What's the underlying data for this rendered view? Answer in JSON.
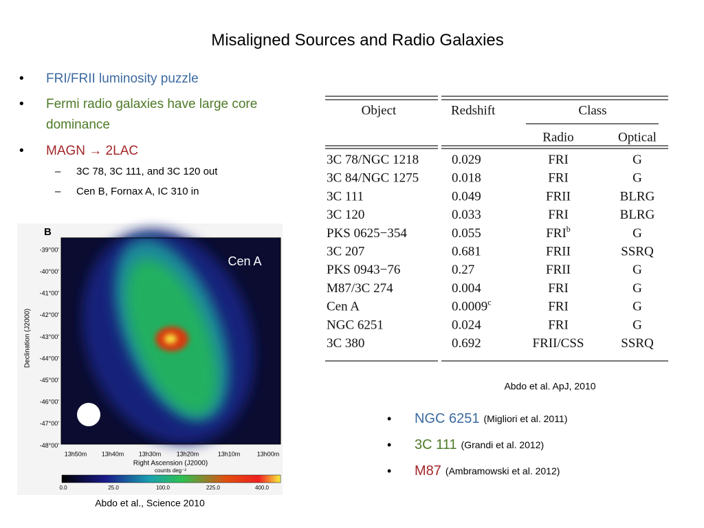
{
  "title": "Misaligned Sources and Radio Galaxies",
  "bullets": [
    {
      "text": "FRI/FRII luminosity puzzle",
      "color": "#3b6aa0"
    },
    {
      "text": "Fermi radio galaxies have large core dominance",
      "color": "#4e7a27"
    },
    {
      "text": "MAGN → 2LAC",
      "color": "#a2262a",
      "sub": [
        "3C 78, 3C 111, and 3C 120 out",
        "Cen B, Fornax A, IC 310 in"
      ]
    }
  ],
  "table": {
    "headers": {
      "object": "Object",
      "redshift": "Redshift",
      "class": "Class",
      "radio": "Radio",
      "optical": "Optical"
    },
    "rows": [
      [
        {
          "text": "3C 78/NGC 1218"
        },
        {
          "text": "0.029"
        },
        {
          "text": "FRI"
        },
        {
          "text": "G"
        }
      ],
      [
        {
          "text": "3C 84/NGC 1275"
        },
        {
          "text": "0.018"
        },
        {
          "text": "FRI"
        },
        {
          "text": "G"
        }
      ],
      [
        {
          "text": "3C 111"
        },
        {
          "text": "0.049"
        },
        {
          "text": "FRII"
        },
        {
          "text": "BLRG"
        }
      ],
      [
        {
          "text": "3C 120"
        },
        {
          "text": "0.033"
        },
        {
          "text": "FRI"
        },
        {
          "text": "BLRG"
        }
      ],
      [
        {
          "text": "PKS 0625−354"
        },
        {
          "text": "0.055"
        },
        {
          "text": "FRI",
          "sup": "b"
        },
        {
          "text": "G"
        }
      ],
      [
        {
          "text": "3C 207"
        },
        {
          "text": "0.681"
        },
        {
          "text": "FRII"
        },
        {
          "text": "SSRQ"
        }
      ],
      [
        {
          "text": "PKS 0943−76"
        },
        {
          "text": "0.27"
        },
        {
          "text": "FRII"
        },
        {
          "text": "G"
        }
      ],
      [
        {
          "text": "M87/3C 274"
        },
        {
          "text": "0.004"
        },
        {
          "text": "FRI"
        },
        {
          "text": "G"
        }
      ],
      [
        {
          "text": "Cen A"
        },
        {
          "text": "0.0009",
          "sup": "c"
        },
        {
          "text": "FRI"
        },
        {
          "text": "G"
        }
      ],
      [
        {
          "text": "NGC 6251"
        },
        {
          "text": "0.024"
        },
        {
          "text": "FRI"
        },
        {
          "text": "G"
        }
      ],
      [
        {
          "text": "3C 380"
        },
        {
          "text": "0.692"
        },
        {
          "text": "FRII/CSS"
        },
        {
          "text": "SSRQ"
        }
      ]
    ],
    "caption": "Abdo et al. ApJ, 2010"
  },
  "map": {
    "panel": "B",
    "annotation": "Cen A",
    "yticks": [
      "-39°00'",
      "-40°00'",
      "-41°00'",
      "-42°00'",
      "-43°00'",
      "-44°00'",
      "-45°00'",
      "-46°00'",
      "-47°00'",
      "-48°00'"
    ],
    "xticks": [
      "13h50m",
      "13h40m",
      "13h30m",
      "13h20m",
      "13h10m",
      "13h00m"
    ],
    "ylabel": "Declination (J2000)",
    "xlabel": "Right Ascension (J2000)",
    "colorbar_label": "counts deg⁻²",
    "colorbar_ticks": [
      "0.0",
      "25.0",
      "100.0",
      "225.0",
      "400.0"
    ],
    "caption": "Abdo et al., Science 2010"
  },
  "references": [
    {
      "name": "NGC 6251",
      "ref": "(Migliori et al. 2011)",
      "color": "#3b6aa0"
    },
    {
      "name": "3C 111",
      "ref": "(Grandi et al. 2012)",
      "color": "#4e7a27"
    },
    {
      "name": "M87",
      "ref": "(Ambramowski et al. 2012)",
      "color": "#a2262a"
    }
  ]
}
